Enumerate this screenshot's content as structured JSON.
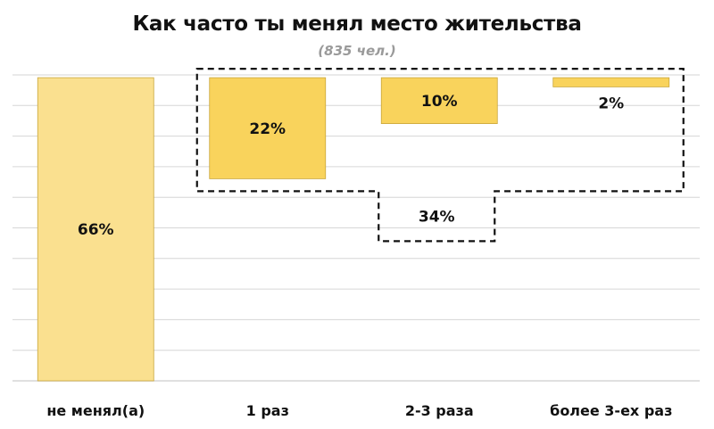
{
  "chart_data": {
    "type": "bar",
    "title": "Как часто ты менял место жительства",
    "subtitle": "(835 чел.)",
    "categories": [
      "не менял(а)",
      "1 раз",
      "2-3 раза",
      "более 3-ех раз"
    ],
    "values": [
      66,
      22,
      10,
      2
    ],
    "bar_labels": [
      "66%",
      "22%",
      "10%",
      "2%"
    ],
    "waterfall_bases": [
      0,
      44,
      56,
      64
    ],
    "group_total": {
      "value": 34,
      "label": "34%",
      "covers": [
        "1 раз",
        "2-3 раза",
        "более 3-ех раз"
      ]
    },
    "xlabel": "",
    "ylabel": "",
    "ylim": [
      0,
      70
    ],
    "grid": true,
    "legend": "none",
    "colors": {
      "base_bar": "#FAE08F",
      "change_bar": "#F9D35C",
      "bar_border": "#C9A63A",
      "grid": "#D6D6D6",
      "dashed": "#111111"
    }
  }
}
